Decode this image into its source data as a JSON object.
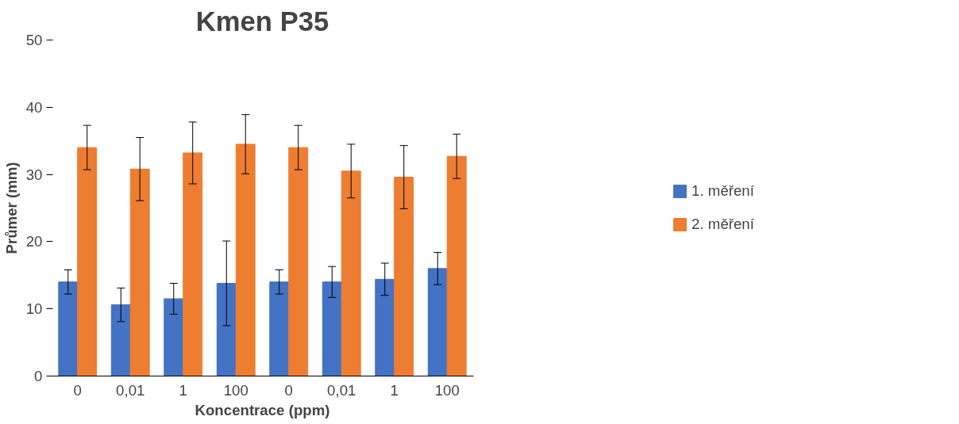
{
  "chart_data": {
    "type": "bar",
    "title": "Kmen P35",
    "xlabel": "Koncentrace (ppm)",
    "ylabel": "Průmer (mm)",
    "categories": [
      "0",
      "0,01",
      "1",
      "100",
      "0",
      "0,01",
      "1",
      "100"
    ],
    "series": [
      {
        "name": "1. měření",
        "color": "#4472c4",
        "values": [
          14.0,
          10.6,
          11.5,
          13.8,
          14.0,
          14.0,
          14.4,
          16.0
        ],
        "errors": [
          1.8,
          2.5,
          2.3,
          6.3,
          1.8,
          2.3,
          2.4,
          2.4
        ]
      },
      {
        "name": "2. měření",
        "color": "#ed7d31",
        "values": [
          34.0,
          30.8,
          33.2,
          34.5,
          34.0,
          30.5,
          29.6,
          32.7
        ],
        "errors": [
          3.3,
          4.7,
          4.6,
          4.4,
          3.3,
          4.0,
          4.7,
          3.3
        ]
      }
    ],
    "ylim": [
      0,
      50
    ],
    "yticks": [
      0,
      10,
      20,
      30,
      40,
      50
    ],
    "grid": false,
    "legend": "right"
  }
}
